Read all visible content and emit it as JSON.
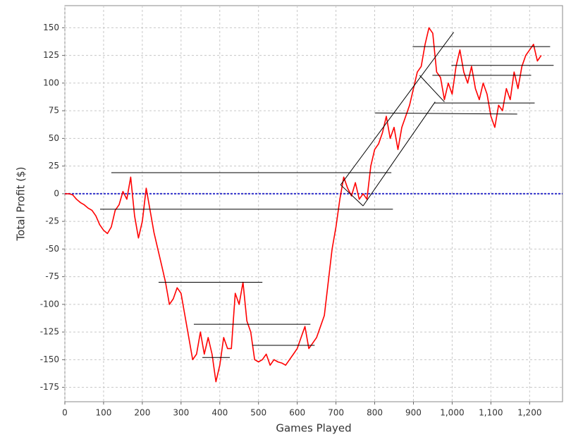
{
  "chart_data": {
    "type": "line",
    "x_label": "Games Played",
    "y_label": "Total Profit ($)",
    "xlim": [
      0,
      1285
    ],
    "ylim": [
      -188,
      170
    ],
    "xticks": [
      0,
      100,
      200,
      300,
      400,
      500,
      600,
      700,
      800,
      900,
      {
        "value": 1000,
        "label": "1,000"
      },
      {
        "value": 1100,
        "label": "1,100"
      },
      {
        "value": 1200,
        "label": "1,200"
      }
    ],
    "yticks": [
      -175,
      -150,
      -125,
      -100,
      -75,
      -50,
      -25,
      0,
      25,
      50,
      75,
      100,
      125,
      150
    ],
    "grid": true,
    "reference_line": {
      "y": 0,
      "color": "#3333cc"
    },
    "x": [
      0,
      10,
      20,
      30,
      40,
      50,
      60,
      70,
      80,
      90,
      100,
      110,
      120,
      130,
      140,
      150,
      160,
      170,
      180,
      190,
      200,
      210,
      220,
      230,
      240,
      250,
      260,
      270,
      280,
      290,
      300,
      310,
      320,
      330,
      340,
      350,
      360,
      370,
      380,
      390,
      400,
      410,
      420,
      430,
      440,
      450,
      460,
      470,
      480,
      490,
      500,
      510,
      520,
      530,
      540,
      550,
      560,
      570,
      580,
      590,
      600,
      610,
      620,
      630,
      640,
      650,
      660,
      670,
      680,
      690,
      700,
      710,
      720,
      730,
      740,
      750,
      760,
      770,
      780,
      790,
      800,
      810,
      820,
      830,
      840,
      850,
      860,
      870,
      880,
      890,
      900,
      910,
      920,
      930,
      940,
      950,
      960,
      970,
      980,
      990,
      1000,
      1010,
      1020,
      1030,
      1040,
      1050,
      1060,
      1070,
      1080,
      1090,
      1100,
      1110,
      1120,
      1130,
      1140,
      1150,
      1160,
      1170,
      1180,
      1190,
      1200,
      1210,
      1220,
      1230
    ],
    "series": [
      {
        "color": "#ff0000",
        "values": [
          0,
          0,
          -1,
          -5,
          -8,
          -10,
          -13,
          -15,
          -20,
          -28,
          -33,
          -36,
          -30,
          -15,
          -10,
          2,
          -5,
          15,
          -20,
          -40,
          -25,
          5,
          -15,
          -35,
          -50,
          -65,
          -80,
          -100,
          -95,
          -85,
          -90,
          -110,
          -130,
          -150,
          -145,
          -125,
          -145,
          -130,
          -145,
          -170,
          -155,
          -130,
          -140,
          -140,
          -90,
          -100,
          -80,
          -115,
          -125,
          -150,
          -152,
          -150,
          -145,
          -155,
          -150,
          -152,
          -153,
          -155,
          -150,
          -145,
          -140,
          -130,
          -120,
          -140,
          -135,
          -130,
          -120,
          -110,
          -80,
          -50,
          -30,
          -5,
          15,
          5,
          -2,
          10,
          -5,
          0,
          -5,
          25,
          40,
          45,
          55,
          70,
          50,
          60,
          40,
          60,
          70,
          80,
          95,
          110,
          115,
          135,
          150,
          145,
          110,
          105,
          85,
          100,
          90,
          115,
          130,
          110,
          100,
          115,
          95,
          85,
          100,
          90,
          70,
          60,
          80,
          75,
          95,
          85,
          110,
          95,
          115,
          125,
          130,
          135,
          120,
          125
        ]
      }
    ],
    "trend_lines": {
      "color": "#000000",
      "segments": [
        {
          "x": [
            120,
            843
          ],
          "y": [
            19,
            19
          ]
        },
        {
          "x": [
            91,
            847
          ],
          "y": [
            -14,
            -14
          ]
        },
        {
          "x": [
            242,
            510
          ],
          "y": [
            -80,
            -80
          ]
        },
        {
          "x": [
            333,
            634
          ],
          "y": [
            -118,
            -118
          ]
        },
        {
          "x": [
            355,
            426
          ],
          "y": [
            -148,
            -148
          ]
        },
        {
          "x": [
            484,
            645
          ],
          "y": [
            -137,
            -137
          ]
        },
        {
          "x": [
            712,
            1004
          ],
          "y": [
            8,
            146
          ]
        },
        {
          "x": [
            712,
            770
          ],
          "y": [
            8,
            -11
          ]
        },
        {
          "x": [
            770,
            956
          ],
          "y": [
            -11,
            83
          ]
        },
        {
          "x": [
            916,
            980
          ],
          "y": [
            107,
            83
          ]
        },
        {
          "x": [
            801,
            1168
          ],
          "y": [
            73,
            72
          ]
        },
        {
          "x": [
            898,
            1253
          ],
          "y": [
            133,
            133
          ]
        },
        {
          "x": [
            949,
            1204
          ],
          "y": [
            107,
            107
          ]
        },
        {
          "x": [
            998,
            1262
          ],
          "y": [
            116,
            116
          ]
        },
        {
          "x": [
            954,
            1213
          ],
          "y": [
            82,
            82
          ]
        }
      ]
    }
  }
}
